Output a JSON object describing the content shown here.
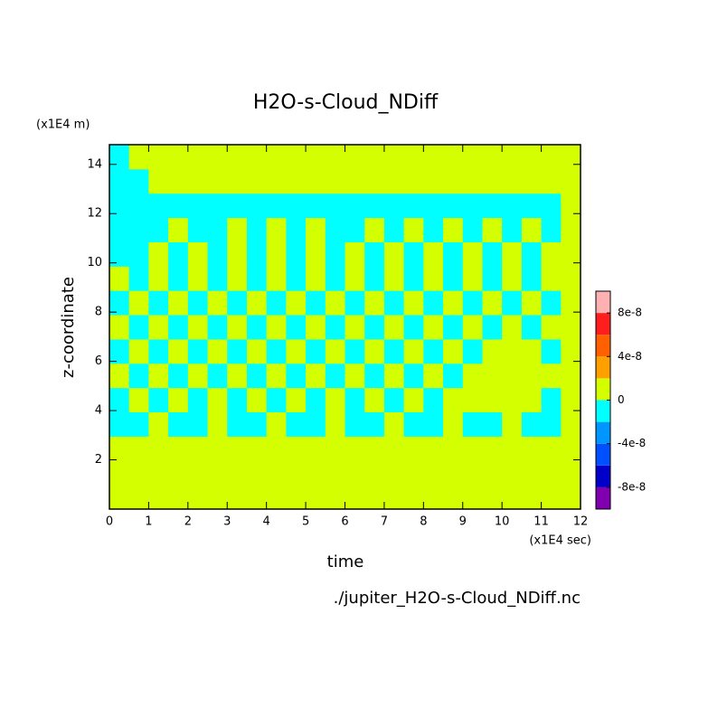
{
  "chart_data": {
    "type": "heatmap",
    "title": "H2O-s-Cloud_NDiff",
    "y_unit": "(x1E4 m)",
    "y_label": "z-coordinate",
    "x_label": "time",
    "x_unit": "(x1E4 sec)",
    "source": "./jupiter_H2O-s-Cloud_NDiff.nc",
    "xlim": [
      0,
      12
    ],
    "xticks": [
      0,
      1,
      2,
      3,
      4,
      5,
      6,
      7,
      8,
      9,
      10,
      11,
      12
    ],
    "ylim": [
      0,
      14.8
    ],
    "yticks": [
      2,
      4,
      6,
      8,
      10,
      12,
      14
    ],
    "colorbar": {
      "levels": [
        -1e-07,
        -8e-08,
        -6e-08,
        -4e-08,
        -2e-08,
        0,
        2e-08,
        4e-08,
        6e-08,
        8e-08,
        1e-07
      ],
      "colors": [
        "#8000b0",
        "#0000c8",
        "#0050ff",
        "#0096ff",
        "#00ffff",
        "#d4ff00",
        "#ffa000",
        "#ff6000",
        "#ff1e1e",
        "#ffb0b0"
      ],
      "ticks": [
        -8e-08,
        -4e-08,
        0,
        4e-08,
        8e-08
      ]
    },
    "z": [
      [
        1e-08,
        1e-08,
        1e-08,
        1e-08,
        1e-08,
        1e-08,
        1e-08,
        1e-08,
        1e-08,
        1e-08,
        1e-08,
        1e-08,
        1e-08,
        1e-08,
        1e-08,
        1e-08,
        1e-08,
        1e-08,
        1e-08,
        1e-08,
        1e-08,
        1e-08,
        1e-08,
        1e-08
      ],
      [
        1e-08,
        1e-08,
        1e-08,
        1e-08,
        1e-08,
        1e-08,
        1e-08,
        1e-08,
        1e-08,
        1e-08,
        1e-08,
        1e-08,
        1e-08,
        1e-08,
        1e-08,
        1e-08,
        1e-08,
        1e-08,
        1e-08,
        1e-08,
        1e-08,
        1e-08,
        1e-08,
        1e-08
      ],
      [
        1e-08,
        1e-08,
        1e-08,
        1e-08,
        1e-08,
        1e-08,
        1e-08,
        1e-08,
        1e-08,
        1e-08,
        1e-08,
        1e-08,
        1e-08,
        1e-08,
        1e-08,
        1e-08,
        1e-08,
        1e-08,
        1e-08,
        1e-08,
        1e-08,
        1e-08,
        1e-08,
        1e-08
      ],
      [
        -1e-08,
        -1e-08,
        1e-08,
        -1e-08,
        -1e-08,
        1e-08,
        -1e-08,
        -1e-08,
        1e-08,
        -1e-08,
        -1e-08,
        1e-08,
        -1e-08,
        -1e-08,
        1e-08,
        -1e-08,
        -1e-08,
        1e-08,
        -1e-08,
        -1e-08,
        1e-08,
        -1e-08,
        -1e-08,
        1e-08
      ],
      [
        -1e-08,
        1e-08,
        -1e-08,
        1e-08,
        -1e-08,
        1e-08,
        -1e-08,
        1e-08,
        -1e-08,
        1e-08,
        -1e-08,
        1e-08,
        -1e-08,
        1e-08,
        -1e-08,
        1e-08,
        -1e-08,
        1e-08,
        1e-08,
        1e-08,
        1e-08,
        1e-08,
        -1e-08,
        1e-08
      ],
      [
        1e-08,
        -1e-08,
        1e-08,
        -1e-08,
        1e-08,
        -1e-08,
        1e-08,
        -1e-08,
        1e-08,
        -1e-08,
        1e-08,
        -1e-08,
        1e-08,
        -1e-08,
        1e-08,
        -1e-08,
        1e-08,
        -1e-08,
        1e-08,
        1e-08,
        1e-08,
        1e-08,
        1e-08,
        1e-08
      ],
      [
        -1e-08,
        1e-08,
        -1e-08,
        1e-08,
        -1e-08,
        1e-08,
        -1e-08,
        1e-08,
        -1e-08,
        1e-08,
        -1e-08,
        1e-08,
        -1e-08,
        1e-08,
        -1e-08,
        1e-08,
        -1e-08,
        1e-08,
        -1e-08,
        1e-08,
        1e-08,
        1e-08,
        -1e-08,
        1e-08
      ],
      [
        1e-08,
        -1e-08,
        1e-08,
        -1e-08,
        1e-08,
        -1e-08,
        1e-08,
        -1e-08,
        1e-08,
        -1e-08,
        1e-08,
        -1e-08,
        1e-08,
        -1e-08,
        1e-08,
        -1e-08,
        1e-08,
        -1e-08,
        1e-08,
        -1e-08,
        1e-08,
        -1e-08,
        1e-08,
        1e-08
      ],
      [
        -1e-08,
        1e-08,
        -1e-08,
        1e-08,
        -1e-08,
        1e-08,
        -1e-08,
        1e-08,
        -1e-08,
        1e-08,
        -1e-08,
        1e-08,
        -1e-08,
        1e-08,
        -1e-08,
        1e-08,
        -1e-08,
        1e-08,
        -1e-08,
        1e-08,
        -1e-08,
        1e-08,
        -1e-08,
        1e-08
      ],
      [
        1e-08,
        -1e-08,
        1e-08,
        -1e-08,
        1e-08,
        -1e-08,
        1e-08,
        -1e-08,
        1e-08,
        -1e-08,
        1e-08,
        -1e-08,
        1e-08,
        -1e-08,
        1e-08,
        -1e-08,
        1e-08,
        -1e-08,
        1e-08,
        -1e-08,
        1e-08,
        -1e-08,
        1e-08,
        1e-08
      ],
      [
        -1e-08,
        -1e-08,
        1e-08,
        -1e-08,
        1e-08,
        -1e-08,
        1e-08,
        -1e-08,
        1e-08,
        -1e-08,
        1e-08,
        -1e-08,
        1e-08,
        -1e-08,
        1e-08,
        -1e-08,
        1e-08,
        -1e-08,
        1e-08,
        -1e-08,
        1e-08,
        -1e-08,
        1e-08,
        1e-08
      ],
      [
        -1e-08,
        -1e-08,
        -1e-08,
        1e-08,
        -1e-08,
        -1e-08,
        1e-08,
        -1e-08,
        1e-08,
        -1e-08,
        1e-08,
        -1e-08,
        -1e-08,
        1e-08,
        -1e-08,
        1e-08,
        -1e-08,
        1e-08,
        -1e-08,
        1e-08,
        -1e-08,
        1e-08,
        -1e-08,
        1e-08
      ],
      [
        -1e-08,
        -1e-08,
        -1e-08,
        -1e-08,
        -1e-08,
        -1e-08,
        -1e-08,
        -1e-08,
        -1e-08,
        -1e-08,
        -1e-08,
        -1e-08,
        -1e-08,
        -1e-08,
        -1e-08,
        -1e-08,
        -1e-08,
        -1e-08,
        -1e-08,
        -1e-08,
        -1e-08,
        -1e-08,
        -1e-08,
        1e-08
      ],
      [
        -1e-08,
        -1e-08,
        1e-08,
        1e-08,
        1e-08,
        1e-08,
        1e-08,
        1e-08,
        1e-08,
        1e-08,
        1e-08,
        1e-08,
        1e-08,
        1e-08,
        1e-08,
        1e-08,
        1e-08,
        1e-08,
        1e-08,
        1e-08,
        1e-08,
        1e-08,
        1e-08,
        1e-08
      ],
      [
        -1e-08,
        1e-08,
        1e-08,
        1e-08,
        1e-08,
        1e-08,
        1e-08,
        1e-08,
        1e-08,
        1e-08,
        1e-08,
        1e-08,
        1e-08,
        1e-08,
        1e-08,
        1e-08,
        1e-08,
        1e-08,
        1e-08,
        1e-08,
        1e-08,
        1e-08,
        1e-08,
        1e-08
      ]
    ]
  }
}
